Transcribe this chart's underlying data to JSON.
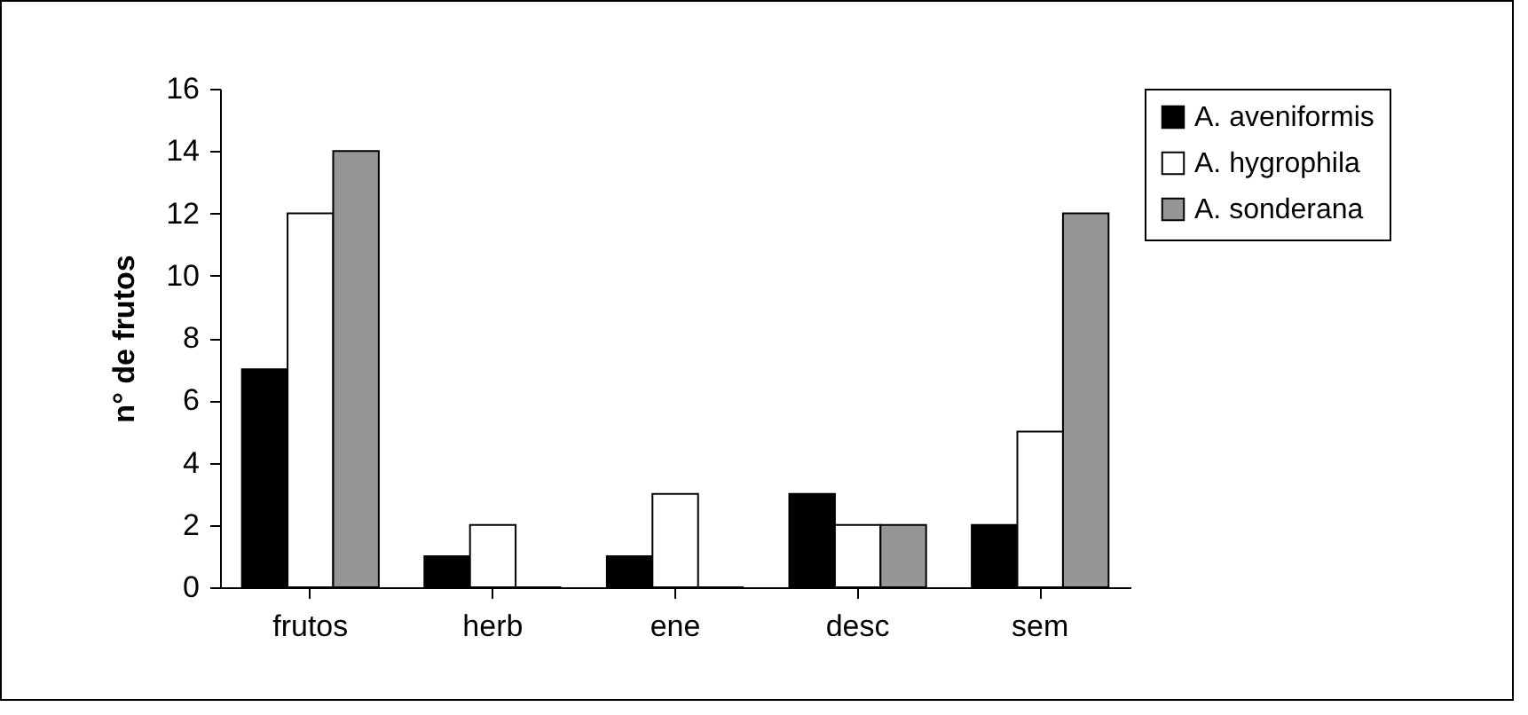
{
  "chart_data": {
    "type": "bar",
    "ylabel": "n° de frutos",
    "categories": [
      "frutos",
      "herb",
      "ene",
      "desc",
      "sem"
    ],
    "series": [
      {
        "name": "A. aveniformis",
        "color": "#000000",
        "values": [
          7,
          1,
          1,
          3,
          2
        ]
      },
      {
        "name": "A. hygrophila",
        "color": "#ffffff",
        "values": [
          12,
          2,
          3,
          2,
          5
        ]
      },
      {
        "name": "A. sonderana",
        "color": "#969696",
        "values": [
          14,
          0,
          0,
          2,
          12
        ]
      }
    ],
    "ylim": [
      0,
      16
    ],
    "yticks": [
      0,
      2,
      4,
      6,
      8,
      10,
      12,
      14,
      16
    ],
    "grid": false,
    "legend": "right"
  }
}
